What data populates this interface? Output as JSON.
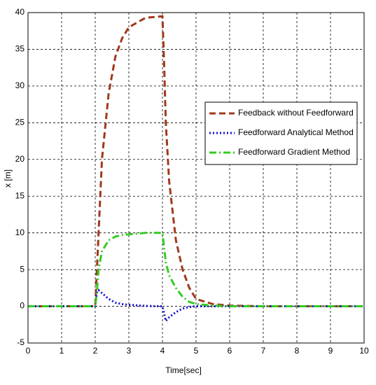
{
  "chart_data": {
    "type": "line",
    "xlabel": "Time[sec]",
    "ylabel": "x [m]",
    "x": [
      0,
      1,
      2,
      2.05,
      2.1,
      2.2,
      2.4,
      2.6,
      2.8,
      3,
      3.5,
      4,
      4.05,
      4.1,
      4.2,
      4.4,
      4.6,
      4.8,
      5,
      5.5,
      6,
      7,
      8,
      9,
      10
    ],
    "series": [
      {
        "name": "Feedback without Feedforward",
        "color": "#a0391c",
        "dash": "9,5",
        "values": [
          0,
          0,
          0,
          5,
          10,
          20,
          29,
          34,
          36.5,
          38,
          39.3,
          39.5,
          33,
          25,
          17,
          9,
          5,
          2.5,
          1,
          0.3,
          0.1,
          0,
          0,
          0,
          0
        ]
      },
      {
        "name": "Feedforward Analytical Method",
        "color": "#1010d0",
        "dash": "2,3",
        "values": [
          0,
          0,
          0,
          2,
          2.2,
          1.8,
          1,
          0.5,
          0.3,
          0.2,
          0.05,
          0,
          -1,
          -2,
          -1.5,
          -0.8,
          -0.3,
          -0.1,
          0,
          0,
          0,
          0,
          0,
          0,
          0
        ]
      },
      {
        "name": "Feedforward Gradient Method",
        "color": "#33cc22",
        "dash": "10,4,2,4",
        "values": [
          0,
          0,
          0,
          2,
          5,
          7.5,
          9,
          9.5,
          9.7,
          9.8,
          10,
          10,
          8,
          6,
          4.2,
          2.5,
          1.3,
          0.6,
          0.3,
          0.1,
          0,
          0,
          0,
          0,
          0
        ]
      }
    ],
    "xlim": [
      0,
      10
    ],
    "xticks": [
      0,
      1,
      2,
      3,
      4,
      5,
      6,
      7,
      8,
      9,
      10
    ],
    "ylim": [
      -5,
      40
    ],
    "yticks": [
      -5,
      0,
      5,
      10,
      15,
      20,
      25,
      30,
      35,
      40
    ],
    "grid": true,
    "legend": "right"
  }
}
